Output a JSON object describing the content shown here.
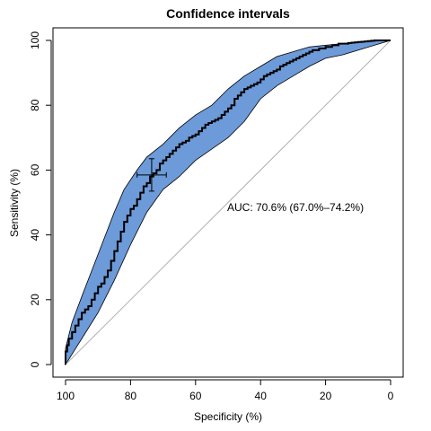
{
  "chart_data": {
    "type": "line",
    "title": "Confidence intervals",
    "xlabel": "Specificity (%)",
    "ylabel": "Sensitivity (%)",
    "x_reversed": true,
    "xlim": [
      100,
      0
    ],
    "ylim": [
      0,
      100
    ],
    "xticks": [
      100,
      80,
      60,
      40,
      20,
      0
    ],
    "yticks": [
      0,
      20,
      40,
      60,
      80,
      100
    ],
    "xtick_labels": [
      "100",
      "80",
      "60",
      "40",
      "20",
      "0"
    ],
    "ytick_labels": [
      "0",
      "20",
      "40",
      "60",
      "80",
      "100"
    ],
    "grid": false,
    "legend": "none",
    "annotation": "AUC: 70.6% (67.0%–74.2%)",
    "band_color": "#6d9ad8",
    "curve_color": "#000000",
    "diagonal_color": "#b0b0b0",
    "band_upper": {
      "x": [
        100,
        99,
        98,
        95,
        90,
        85,
        82,
        78,
        75,
        70,
        65,
        60,
        55,
        50,
        45,
        40,
        35,
        30,
        25,
        20,
        15,
        10,
        5,
        0
      ],
      "y": [
        5,
        9,
        13,
        21,
        34,
        47,
        54,
        60,
        64,
        68,
        73,
        77,
        80,
        85,
        89,
        92,
        95,
        96.5,
        98,
        98.5,
        99,
        99.5,
        99.8,
        100
      ]
    },
    "band_lower": {
      "x": [
        100,
        95,
        90,
        85,
        80,
        75,
        70,
        65,
        60,
        55,
        50,
        45,
        40,
        35,
        30,
        25,
        20,
        15,
        10,
        5,
        0
      ],
      "y": [
        0,
        8,
        16,
        26,
        37,
        47,
        54,
        58,
        63,
        66.5,
        70,
        75,
        82,
        86,
        89,
        92,
        94.5,
        95.5,
        97,
        98.5,
        100
      ]
    },
    "curve": {
      "x": [
        100,
        99.5,
        99,
        98,
        97,
        96,
        95,
        94,
        93,
        92,
        91,
        90,
        89,
        88,
        87,
        86,
        85,
        84,
        83,
        82,
        81,
        80,
        79,
        78,
        77,
        76,
        75,
        74,
        73,
        72,
        71,
        70,
        69,
        68,
        67,
        66,
        65,
        64,
        63,
        62,
        61,
        60,
        59,
        58,
        57,
        56,
        55,
        54,
        53,
        52,
        51,
        50,
        49,
        48,
        47,
        46,
        45,
        44,
        43,
        42,
        41,
        40,
        39,
        38,
        37,
        36,
        35,
        34,
        33,
        32,
        31,
        30,
        29,
        28,
        27,
        26,
        25,
        24,
        23,
        22,
        21,
        20,
        19,
        18,
        17,
        16,
        15,
        14,
        13,
        12,
        11,
        10,
        9,
        8,
        7,
        6,
        5,
        4,
        3,
        2,
        1,
        0
      ],
      "y": [
        0,
        4,
        6,
        8,
        10,
        12,
        14,
        16,
        17,
        18,
        20,
        22,
        24,
        25,
        27,
        29,
        32,
        35,
        38,
        41,
        44,
        46,
        48,
        49,
        51,
        53,
        55,
        56,
        58,
        59,
        60,
        62,
        63,
        64,
        65,
        66,
        67,
        68,
        68.5,
        69,
        70,
        70.5,
        71,
        72,
        73,
        74,
        74.5,
        75,
        75.5,
        76,
        77,
        78,
        79,
        80,
        82,
        83,
        84,
        85,
        85.5,
        86,
        86.5,
        87,
        88,
        89,
        89.5,
        90,
        90.5,
        91,
        92,
        92.5,
        93,
        93.5,
        94,
        94.5,
        95,
        95.5,
        96,
        96.5,
        97,
        97,
        97.5,
        97.5,
        98,
        98,
        98.5,
        98.5,
        99,
        99,
        99,
        99.2,
        99.3,
        99.4,
        99.5,
        99.6,
        99.7,
        99.8,
        99.9,
        100,
        100,
        100,
        100,
        100
      ]
    },
    "threshold_point": {
      "specificity": 73.5,
      "sensitivity": 58.5,
      "specificity_ci": [
        78,
        69
      ],
      "sensitivity_ci": [
        53.5,
        63.5
      ]
    }
  }
}
